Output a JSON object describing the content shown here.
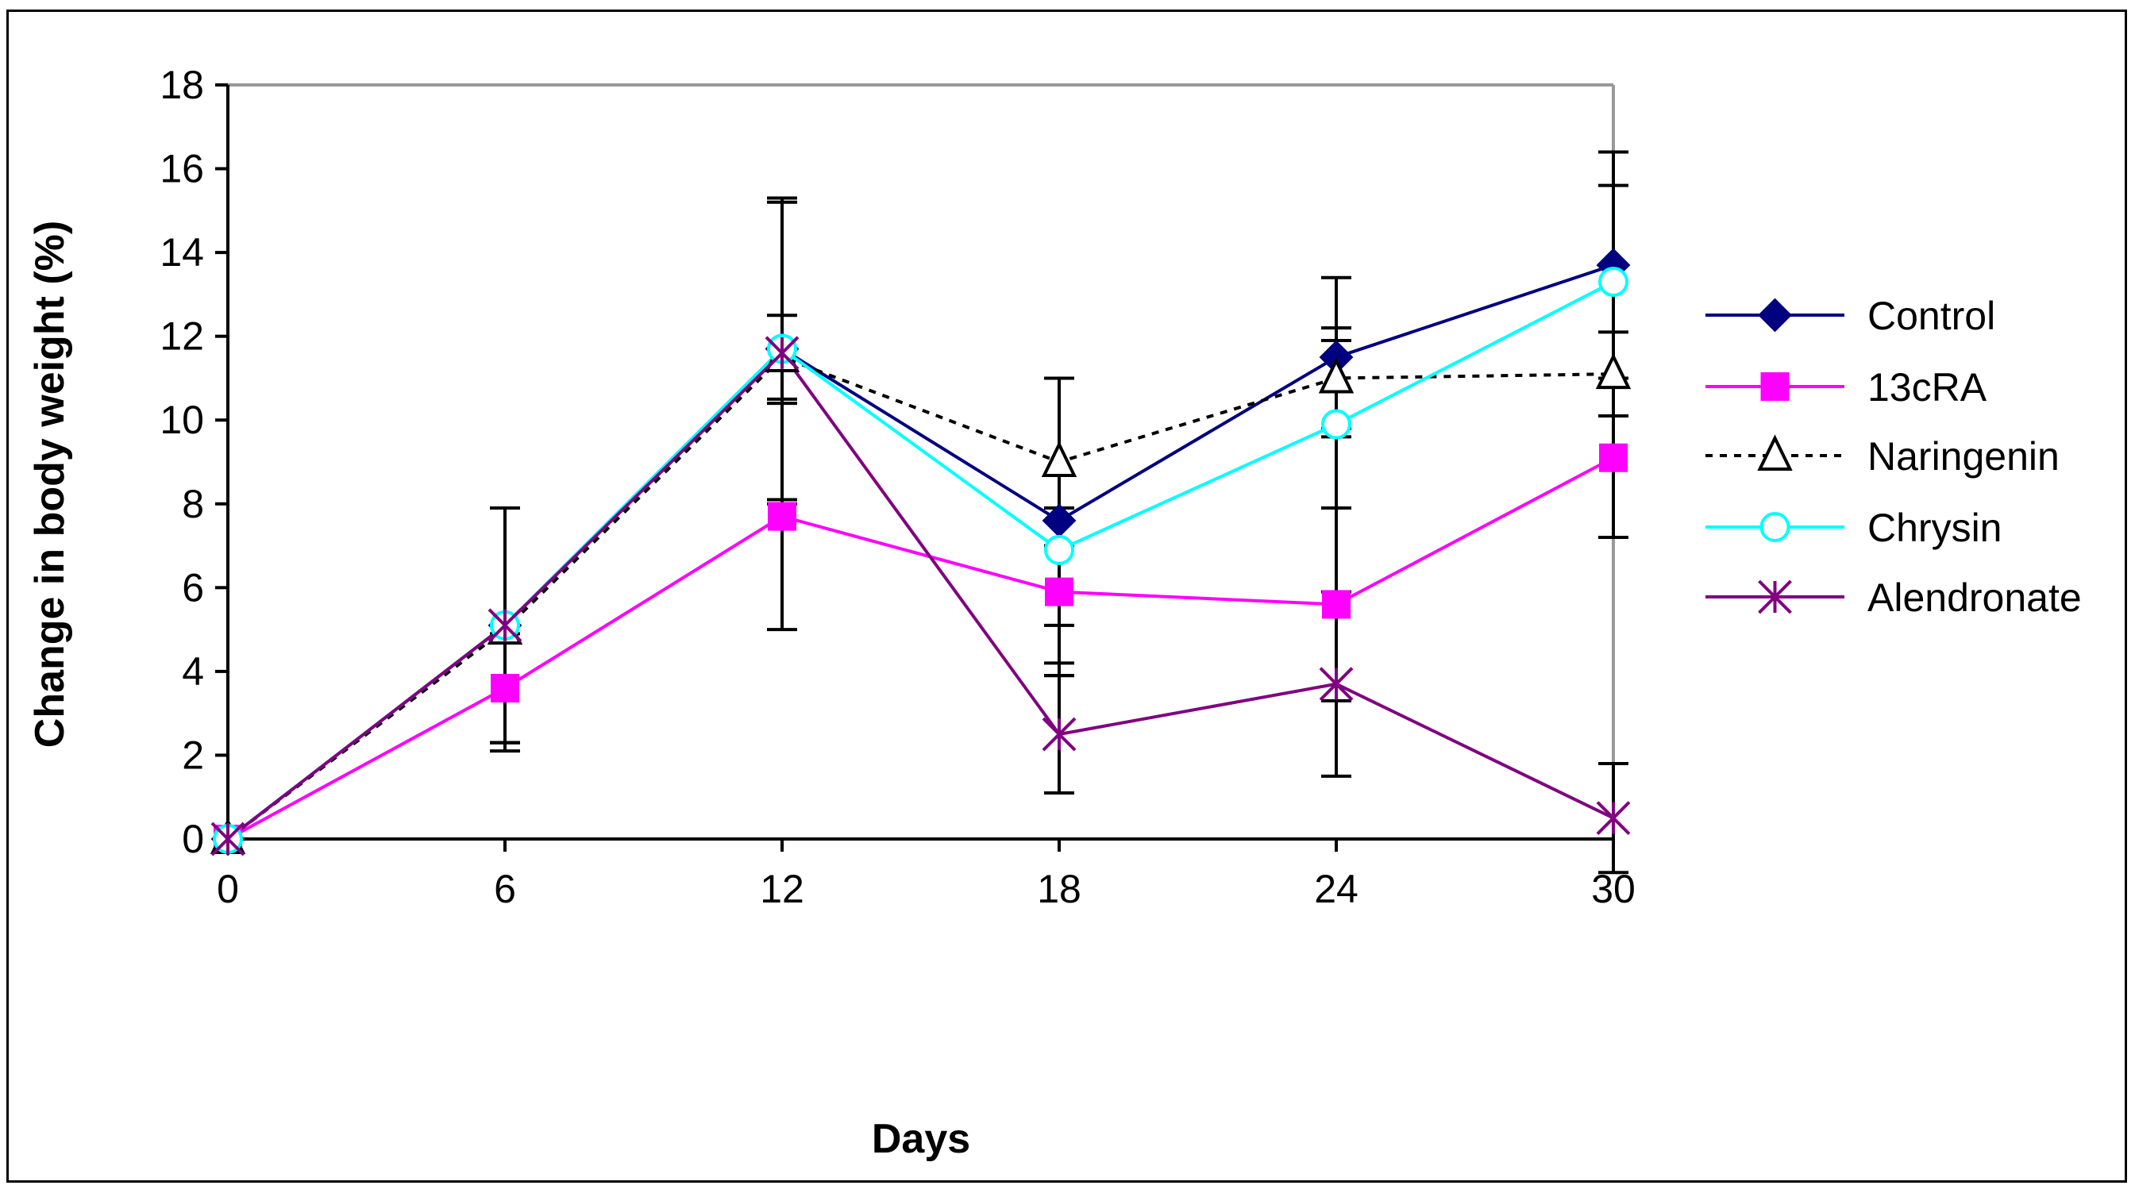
{
  "chart_data": {
    "type": "line",
    "title": "",
    "xlabel": "Days",
    "ylabel": "Change in body weight (%)",
    "x": [
      0,
      6,
      12,
      18,
      24,
      30
    ],
    "xticks": [
      "0",
      "6",
      "12",
      "18",
      "24",
      "30"
    ],
    "yticks": [
      "0",
      "2",
      "4",
      "6",
      "8",
      "10",
      "12",
      "14",
      "16",
      "18"
    ],
    "ylim": [
      0,
      18
    ],
    "xlim": [
      0,
      30
    ],
    "grid": false,
    "legend_position": "right",
    "series": [
      {
        "name": "Control",
        "color": "#000080",
        "marker": "diamond",
        "dash": "solid",
        "values": [
          0,
          5.1,
          11.7,
          7.6,
          11.5,
          13.7
        ],
        "err": [
          0,
          2.8,
          3.6,
          3.4,
          1.9,
          2.7
        ]
      },
      {
        "name": "13cRA",
        "color": "#FF00FF",
        "marker": "square",
        "dash": "solid",
        "values": [
          0,
          3.6,
          7.7,
          5.9,
          5.6,
          9.1
        ],
        "err": [
          0,
          1.3,
          2.7,
          2.0,
          2.3,
          1.9
        ]
      },
      {
        "name": "Naringenin",
        "color": "#000000",
        "marker": "triangle",
        "dash": "dotted",
        "values": [
          0,
          5.0,
          11.5,
          9.0,
          11.0,
          11.1
        ],
        "err": [
          0,
          2.9,
          1.0,
          2.0,
          1.2,
          1.0
        ]
      },
      {
        "name": "Chrysin",
        "color": "#00FFFF",
        "marker": "circle",
        "dash": "solid",
        "values": [
          0,
          5.1,
          11.7,
          6.9,
          9.9,
          13.3
        ],
        "err": [
          0,
          2.8,
          3.6,
          1.8,
          2.0,
          2.3
        ]
      },
      {
        "name": "Alendronate",
        "color": "#800080",
        "marker": "star",
        "dash": "solid",
        "values": [
          0,
          5.1,
          11.6,
          2.5,
          3.7,
          0.5
        ],
        "err": [
          0,
          2.8,
          3.6,
          1.4,
          2.2,
          1.3
        ]
      }
    ]
  }
}
